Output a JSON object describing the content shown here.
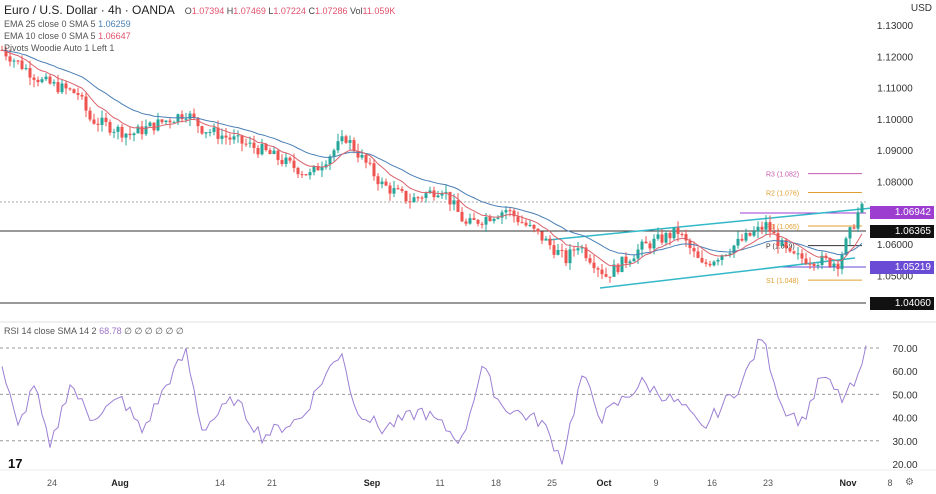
{
  "header": {
    "symbol": "Euro / U.S. Dollar · 4h · OANDA",
    "o_label": "O",
    "o": "1.07394",
    "h_label": "H",
    "h": "1.07469",
    "l_label": "L",
    "l": "1.07224",
    "c_label": "C",
    "c": "1.07286",
    "vol_label": "Vol",
    "vol": "11.059K",
    "currency": "USD"
  },
  "indicators": {
    "ema25": "EMA 25 close 0 SMA 5",
    "ema25_val": "1.06259",
    "ema10": "EMA 10 close 0 SMA 5",
    "ema10_val": "1.06647",
    "pivots": "Pivots Woodie Auto 1 Left 1",
    "rsi": "RSI 14 close SMA 14 2",
    "rsi_val": "68.78",
    "rsi_na": "∅ ∅ ∅ ∅ ∅ ∅"
  },
  "price_tags": {
    "t1": "1.06942",
    "t2": "1.06365",
    "t3": "1.05219",
    "t4": "1.04060"
  },
  "pivots": {
    "r3": "R3 (1.082)",
    "r2": "R2 (1.076)",
    "r1": "R1 (1.065)",
    "p": "P (1.059)",
    "s1": "S1 (1.048)"
  },
  "colors": {
    "up": "#26a69a",
    "down": "#ef5350",
    "rsi": "#9c7fd4",
    "tag_purple": "#9c3fd0",
    "tag_violet": "#6a4bd6",
    "channel": "#32b8c8"
  },
  "chart_data": {
    "type": "candlestick",
    "y_ticks": [
      "1.13000",
      "1.12000",
      "1.11000",
      "1.10000",
      "1.09000",
      "1.08000",
      "1.06000",
      "1.05000"
    ],
    "y_range": [
      1.037,
      1.134
    ],
    "x_ticks": [
      {
        "label": "24",
        "bar": 9
      },
      {
        "label": "Aug",
        "bar": 26,
        "bold": true
      },
      {
        "label": "14",
        "bar": 51
      },
      {
        "label": "21",
        "bar": 64
      },
      {
        "label": "Sep",
        "bar": 89,
        "bold": true
      },
      {
        "label": "11",
        "bar": 106
      },
      {
        "label": "18",
        "bar": 120
      },
      {
        "label": "25",
        "bar": 134
      },
      {
        "label": "Oct",
        "bar": 147,
        "bold": true
      },
      {
        "label": "9",
        "bar": 160
      },
      {
        "label": "16",
        "bar": 174
      },
      {
        "label": "23",
        "bar": 188
      },
      {
        "label": "Nov",
        "bar": 208,
        "bold": true
      },
      {
        "label": "8",
        "bar": 222
      }
    ],
    "price_path": [
      [
        0,
        1.122
      ],
      [
        10,
        1.112
      ],
      [
        19,
        1.108
      ],
      [
        22,
        1.1
      ],
      [
        32,
        1.095
      ],
      [
        46,
        1.102
      ],
      [
        50,
        1.097
      ],
      [
        65,
        1.09
      ],
      [
        77,
        1.082
      ],
      [
        86,
        1.094
      ],
      [
        95,
        1.079
      ],
      [
        102,
        1.074
      ],
      [
        110,
        1.078
      ],
      [
        116,
        1.066
      ],
      [
        126,
        1.071
      ],
      [
        135,
        1.062
      ],
      [
        141,
        1.055
      ],
      [
        144,
        1.06
      ],
      [
        151,
        1.05
      ],
      [
        160,
        1.059
      ],
      [
        169,
        1.064
      ],
      [
        175,
        1.053
      ],
      [
        191,
        1.066
      ],
      [
        197,
        1.056
      ],
      [
        209,
        1.054
      ],
      [
        215,
        1.073
      ]
    ],
    "rsi_ticks": [
      "70.00",
      "60.00",
      "50.00",
      "40.00",
      "30.00",
      "20.00"
    ],
    "rsi_range": [
      17,
      77
    ],
    "rsi_path": [
      [
        0,
        62
      ],
      [
        4,
        35
      ],
      [
        8,
        55
      ],
      [
        12,
        26
      ],
      [
        17,
        55
      ],
      [
        22,
        40
      ],
      [
        30,
        48
      ],
      [
        35,
        34
      ],
      [
        42,
        57
      ],
      [
        46,
        68
      ],
      [
        50,
        35
      ],
      [
        58,
        48
      ],
      [
        65,
        32
      ],
      [
        75,
        40
      ],
      [
        80,
        56
      ],
      [
        85,
        69
      ],
      [
        88,
        45
      ],
      [
        95,
        35
      ],
      [
        105,
        43
      ],
      [
        115,
        30
      ],
      [
        120,
        62
      ],
      [
        125,
        45
      ],
      [
        135,
        38
      ],
      [
        140,
        22
      ],
      [
        145,
        58
      ],
      [
        150,
        40
      ],
      [
        160,
        55
      ],
      [
        170,
        45
      ],
      [
        175,
        35
      ],
      [
        185,
        55
      ],
      [
        190,
        75
      ],
      [
        195,
        45
      ],
      [
        200,
        38
      ],
      [
        205,
        58
      ],
      [
        210,
        48
      ],
      [
        214,
        56
      ],
      [
        216,
        69
      ]
    ]
  }
}
